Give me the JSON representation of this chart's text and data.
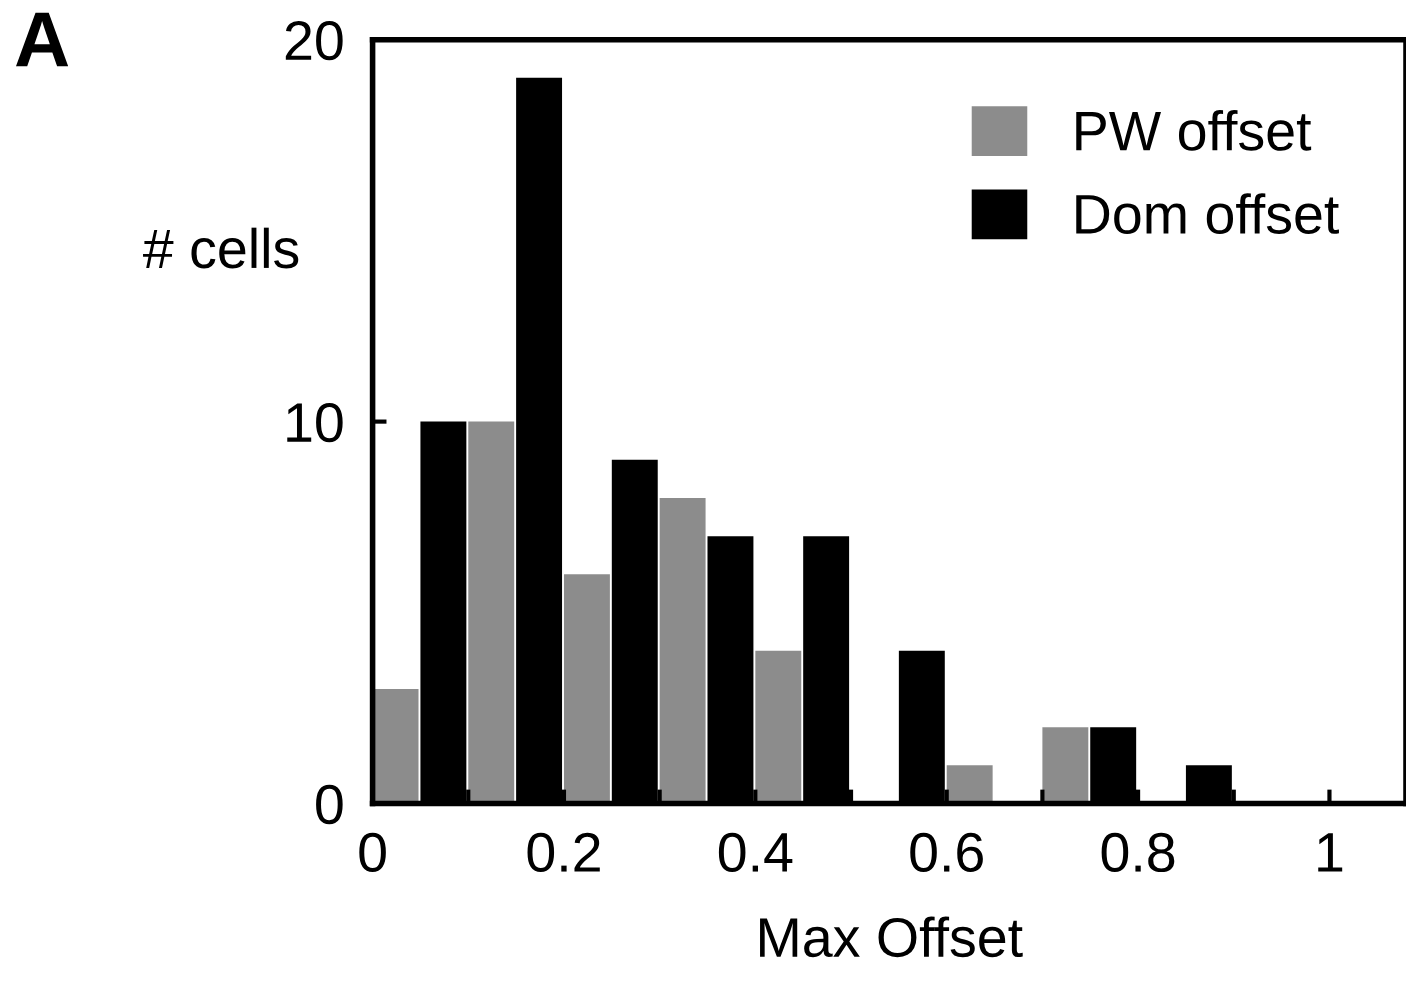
{
  "chart_data": {
    "type": "histogram",
    "xlabel": "Max Offset",
    "ylabel": "# cells",
    "annotations": [
      "A"
    ],
    "bins": [
      0,
      0.1,
      0.2,
      0.3,
      0.4,
      0.5,
      0.6,
      0.7,
      0.8,
      0.9,
      1.0
    ],
    "series": [
      {
        "name": "PW offset",
        "color": "#8c8c8c",
        "values": [
          3,
          10,
          6,
          8,
          4,
          0,
          1,
          2,
          0,
          0
        ]
      },
      {
        "name": "Dom offset",
        "color": "#000000",
        "values": [
          10,
          19,
          9,
          7,
          7,
          4,
          0,
          2,
          1,
          0
        ]
      }
    ],
    "xlim": [
      0,
      1.08
    ],
    "ylim": [
      0,
      20
    ],
    "xticks": [
      0,
      {
        "value": 0.1,
        "label": null
      },
      0.2,
      {
        "value": 0.3,
        "label": null
      },
      0.4,
      {
        "value": 0.5,
        "label": null
      },
      0.6,
      {
        "value": 0.7,
        "label": null
      },
      0.8,
      {
        "value": 0.9,
        "label": null
      },
      1
    ],
    "yticks": [
      0,
      10,
      20
    ],
    "legend": "top right",
    "grid": false
  }
}
